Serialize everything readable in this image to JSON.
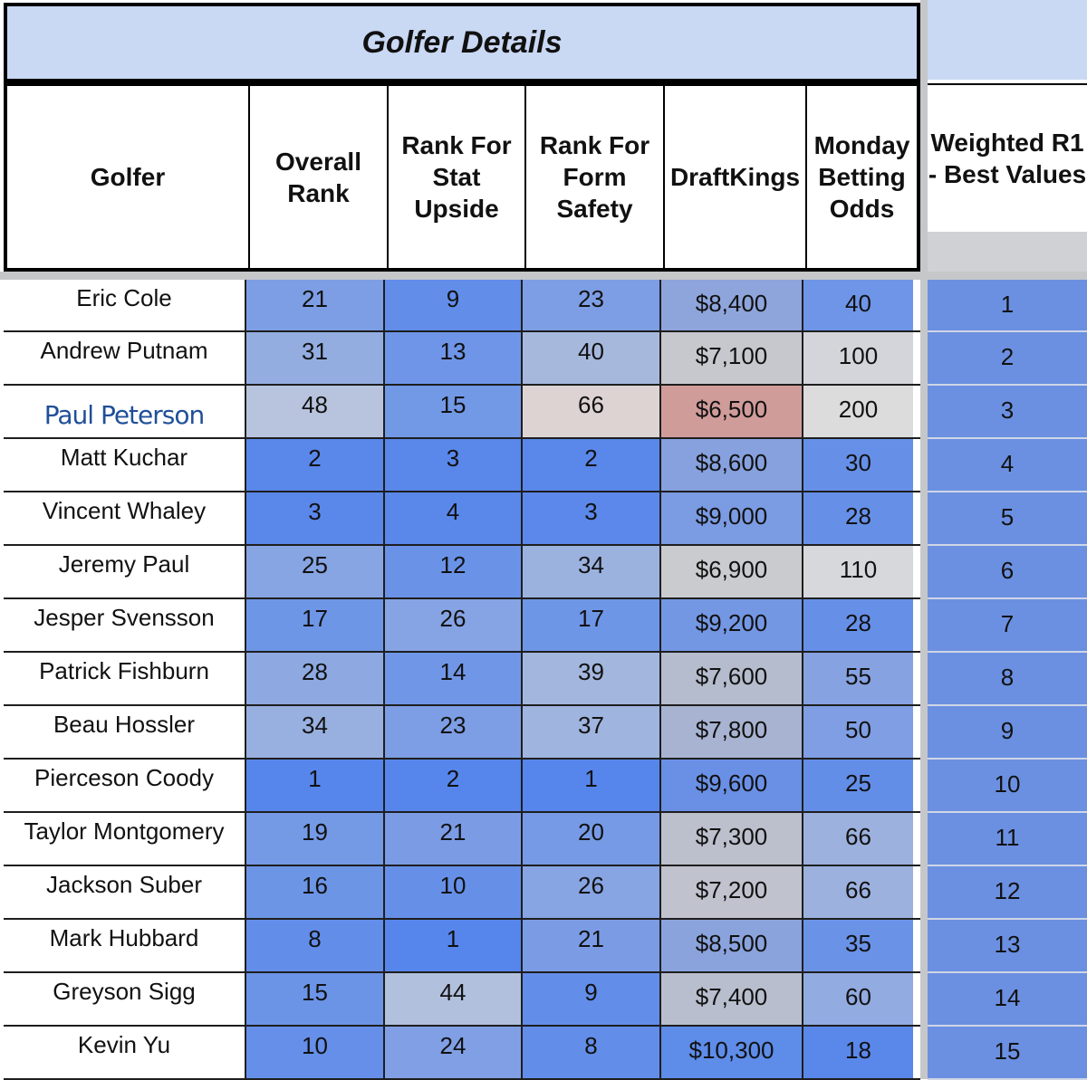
{
  "title": "Golfer Details",
  "headers": {
    "golfer": "Golfer",
    "overall": "Overall Rank",
    "stat": "Rank For Stat Upside",
    "form": "Rank For Form Safety",
    "dk": "DraftKings",
    "odds": "Monday Betting Odds",
    "weighted": "Weighted R1 - Best Values"
  },
  "rows": [
    {
      "name": "Eric Cole",
      "overall": "21",
      "stat": "9",
      "form": "23",
      "dk": "$8,400",
      "odds": "40",
      "wv": "1",
      "colors": {
        "overall": "#7d9ee4",
        "stat": "#628de9",
        "form": "#7d9ee4",
        "dk": "#8ea5dc",
        "odds": "#6e95e7",
        "wv": "#6b90e1"
      }
    },
    {
      "name": "Andrew Putnam",
      "overall": "31",
      "stat": "13",
      "form": "40",
      "dk": "$7,100",
      "odds": "100",
      "wv": "2",
      "colors": {
        "overall": "#93ade1",
        "stat": "#6e95e7",
        "form": "#a6b8dc",
        "dk": "#c6c8ce",
        "odds": "#d3d5db",
        "wv": "#6b90e1"
      }
    },
    {
      "name": "Paul Peterson",
      "accent": true,
      "overall": "48",
      "stat": "15",
      "form": "66",
      "dk": "$6,500",
      "odds": "200",
      "wv": "3",
      "colors": {
        "overall": "#b8c4dd",
        "stat": "#7299e6",
        "form": "#ddd3d3",
        "dk": "#d09c9a",
        "odds": "#dddcdc",
        "wv": "#6b90e1"
      }
    },
    {
      "name": "Matt Kuchar",
      "overall": "2",
      "stat": "3",
      "form": "2",
      "dk": "$8,600",
      "odds": "30",
      "wv": "4",
      "colors": {
        "overall": "#5a87ea",
        "stat": "#5a87ea",
        "form": "#5a87ea",
        "dk": "#86a1de",
        "odds": "#6690e8",
        "wv": "#6b90e1"
      }
    },
    {
      "name": "Vincent Whaley",
      "overall": "3",
      "stat": "4",
      "form": "3",
      "dk": "$9,000",
      "odds": "28",
      "wv": "5",
      "colors": {
        "overall": "#5a87ea",
        "stat": "#5a87ea",
        "form": "#5b88ea",
        "dk": "#7b9be2",
        "odds": "#6690e8",
        "wv": "#6b90e1"
      }
    },
    {
      "name": "Jeremy Paul",
      "overall": "25",
      "stat": "12",
      "form": "34",
      "dk": "$6,900",
      "odds": "110",
      "wv": "6",
      "colors": {
        "overall": "#87a5e3",
        "stat": "#6a93e8",
        "form": "#9bb2df",
        "dk": "#cacbcf",
        "odds": "#d7d8dc",
        "wv": "#6b90e1"
      }
    },
    {
      "name": "Jesper Svensson",
      "overall": "17",
      "stat": "26",
      "form": "17",
      "dk": "$9,200",
      "odds": "28",
      "wv": "7",
      "colors": {
        "overall": "#6e96e6",
        "stat": "#86a4e4",
        "form": "#6e96e6",
        "dk": "#7497e4",
        "odds": "#6690e8",
        "wv": "#6b90e1"
      }
    },
    {
      "name": "Patrick Fishburn",
      "overall": "28",
      "stat": "14",
      "form": "39",
      "dk": "$7,600",
      "odds": "55",
      "wv": "8",
      "colors": {
        "overall": "#8ea9e2",
        "stat": "#7097e7",
        "form": "#a3b6dd",
        "dk": "#b5bccd",
        "odds": "#86a2e1",
        "wv": "#6b90e1"
      }
    },
    {
      "name": "Beau Hossler",
      "overall": "34",
      "stat": "23",
      "form": "37",
      "dk": "$7,800",
      "odds": "50",
      "wv": "9",
      "colors": {
        "overall": "#98b0e0",
        "stat": "#7d9ee4",
        "form": "#9fb4de",
        "dk": "#a7b3d1",
        "odds": "#7f9ee3",
        "wv": "#6b90e1"
      }
    },
    {
      "name": "Pierceson Coody",
      "overall": "1",
      "stat": "2",
      "form": "1",
      "dk": "$9,600",
      "odds": "25",
      "wv": "10",
      "colors": {
        "overall": "#5686eb",
        "stat": "#5686eb",
        "form": "#5686eb",
        "dk": "#6a90e6",
        "odds": "#638ee8",
        "wv": "#6b90e1"
      }
    },
    {
      "name": "Taylor Montgomery",
      "overall": "19",
      "stat": "21",
      "form": "20",
      "dk": "$7,300",
      "odds": "66",
      "wv": "11",
      "colors": {
        "overall": "#7499e5",
        "stat": "#7b9ce5",
        "form": "#769ae5",
        "dk": "#bcc0cc",
        "odds": "#9cb1de",
        "wv": "#6b90e1"
      }
    },
    {
      "name": "Jackson Suber",
      "overall": "16",
      "stat": "10",
      "form": "26",
      "dk": "$7,200",
      "odds": "66",
      "wv": "12",
      "colors": {
        "overall": "#6c95e6",
        "stat": "#6690e8",
        "form": "#87a4e3",
        "dk": "#c0c3cd",
        "odds": "#9cb1de",
        "wv": "#6b90e1"
      }
    },
    {
      "name": "Mark Hubbard",
      "overall": "8",
      "stat": "1",
      "form": "21",
      "dk": "$8,500",
      "odds": "35",
      "wv": "13",
      "colors": {
        "overall": "#628de9",
        "stat": "#5686eb",
        "form": "#7b9ce5",
        "dk": "#8aa3dd",
        "odds": "#6a93e8",
        "wv": "#6b90e1"
      }
    },
    {
      "name": "Greyson Sigg",
      "overall": "15",
      "stat": "44",
      "form": "9",
      "dk": "$7,400",
      "odds": "60",
      "wv": "14",
      "colors": {
        "overall": "#6b94e7",
        "stat": "#b1c0dd",
        "form": "#628de9",
        "dk": "#b8becd",
        "odds": "#92abe0",
        "wv": "#6b90e1"
      }
    },
    {
      "name": "Kevin Yu",
      "overall": "10",
      "stat": "24",
      "form": "8",
      "dk": "$10,300",
      "odds": "18",
      "wv": "15",
      "colors": {
        "overall": "#658fe8",
        "stat": "#819fe4",
        "form": "#628de9",
        "dk": "#5e8ce9",
        "odds": "#5a87ea",
        "wv": "#6b90e1"
      }
    }
  ]
}
